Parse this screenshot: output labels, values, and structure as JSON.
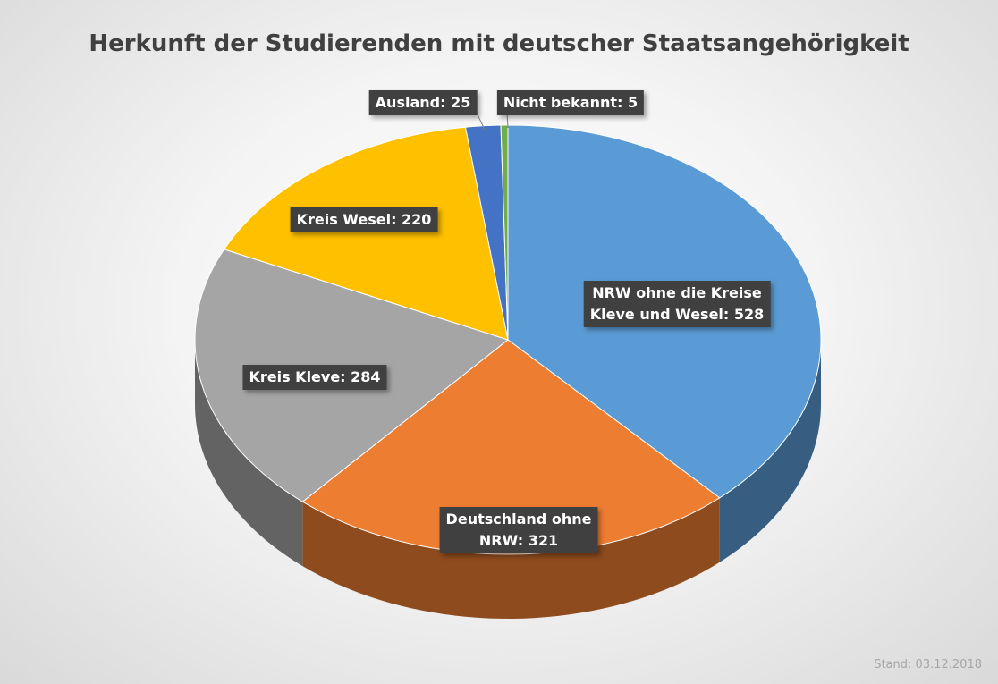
{
  "chart_data": {
    "type": "pie",
    "title": "Herkunft der Studierenden mit deutscher Staatsangehörigkeit",
    "values": [
      528,
      321,
      284,
      220,
      25,
      5
    ],
    "value_labels": [
      "NRW ohne die Kreise\nKleve und Wesel: 528",
      "Deutschland ohne\nNRW: 321",
      "Kreis Kleve: 284",
      "Kreis Wesel: 220",
      "Ausland: 25",
      "Nicht bekannt: 5"
    ],
    "colors": [
      "#5b9bd5",
      "#ed7d31",
      "#a5a5a5",
      "#ffc000",
      "#4472c4",
      "#70ad47"
    ],
    "note": "Stand: 03.12.2018"
  }
}
